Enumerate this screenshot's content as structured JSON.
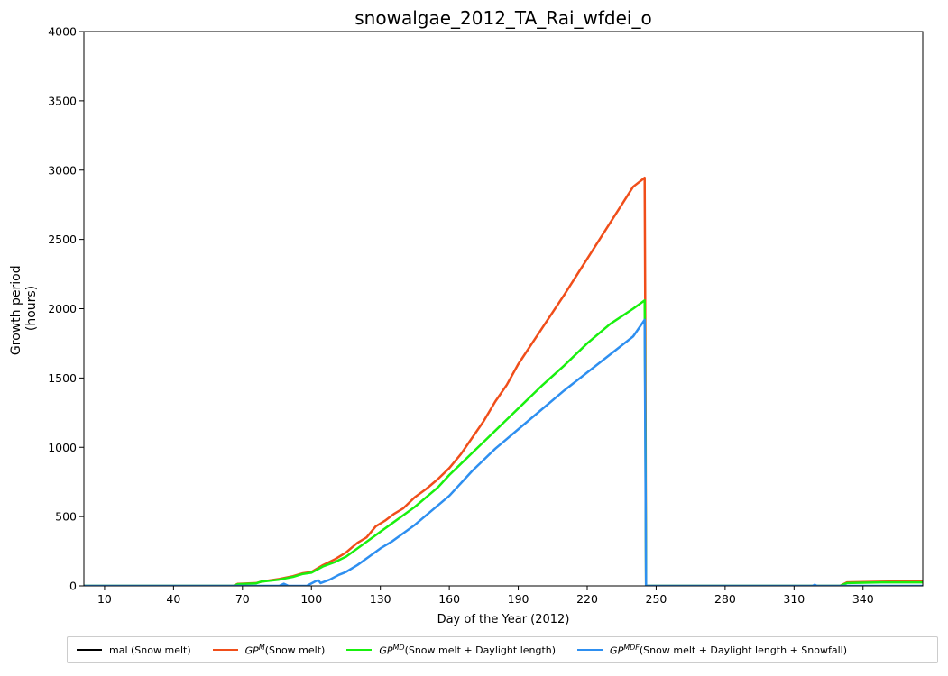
{
  "chart_data": {
    "type": "line",
    "title": "snowalgae_2012_TA_Rai_wfdei_o",
    "xlabel": "Day of the Year (2012)",
    "ylabel_line1": "Growth period",
    "ylabel_line2": "(hours)",
    "xlim": [
      1,
      366
    ],
    "ylim": [
      0,
      4000
    ],
    "xticks": [
      10,
      40,
      70,
      100,
      130,
      160,
      190,
      220,
      250,
      280,
      310,
      340
    ],
    "yticks": [
      0,
      500,
      1000,
      1500,
      2000,
      2500,
      3000,
      3500,
      4000
    ],
    "grid": false,
    "legend_position": "bottom-outside",
    "series": [
      {
        "name": "mal (Snow melt)",
        "legend_prefix": "",
        "legend_sup": "",
        "legend_text": "mal (Snow melt)",
        "color": "#000000",
        "points": []
      },
      {
        "name": "GP^M (Snow melt)",
        "legend_prefix": "GP",
        "legend_sup": "M",
        "legend_text": " (Snow melt)",
        "color": "#f04e1a",
        "points": [
          [
            1,
            0
          ],
          [
            66,
            0
          ],
          [
            68,
            15
          ],
          [
            76,
            20
          ],
          [
            78,
            30
          ],
          [
            86,
            50
          ],
          [
            92,
            70
          ],
          [
            96,
            90
          ],
          [
            100,
            100
          ],
          [
            105,
            150
          ],
          [
            110,
            190
          ],
          [
            115,
            240
          ],
          [
            120,
            310
          ],
          [
            124,
            350
          ],
          [
            128,
            430
          ],
          [
            132,
            470
          ],
          [
            136,
            520
          ],
          [
            140,
            560
          ],
          [
            145,
            640
          ],
          [
            150,
            700
          ],
          [
            155,
            770
          ],
          [
            160,
            850
          ],
          [
            165,
            950
          ],
          [
            170,
            1070
          ],
          [
            175,
            1190
          ],
          [
            180,
            1330
          ],
          [
            185,
            1450
          ],
          [
            190,
            1600
          ],
          [
            200,
            1850
          ],
          [
            210,
            2100
          ],
          [
            220,
            2360
          ],
          [
            230,
            2620
          ],
          [
            240,
            2880
          ],
          [
            245,
            2945
          ],
          [
            245.3,
            1800
          ],
          [
            245.6,
            0
          ],
          [
            330,
            0
          ],
          [
            333,
            25
          ],
          [
            348,
            30
          ],
          [
            366,
            35
          ]
        ]
      },
      {
        "name": "GP^MD (Snow melt + Daylight length)",
        "legend_prefix": "GP",
        "legend_sup": "MD",
        "legend_text": " (Snow melt + Daylight length)",
        "color": "#19f00e",
        "points": [
          [
            1,
            0
          ],
          [
            66,
            0
          ],
          [
            68,
            12
          ],
          [
            76,
            18
          ],
          [
            78,
            30
          ],
          [
            86,
            45
          ],
          [
            92,
            65
          ],
          [
            96,
            85
          ],
          [
            100,
            95
          ],
          [
            105,
            140
          ],
          [
            110,
            170
          ],
          [
            115,
            210
          ],
          [
            120,
            270
          ],
          [
            125,
            330
          ],
          [
            130,
            390
          ],
          [
            135,
            450
          ],
          [
            140,
            510
          ],
          [
            145,
            570
          ],
          [
            150,
            640
          ],
          [
            155,
            710
          ],
          [
            160,
            800
          ],
          [
            165,
            880
          ],
          [
            170,
            960
          ],
          [
            175,
            1040
          ],
          [
            180,
            1120
          ],
          [
            185,
            1200
          ],
          [
            190,
            1280
          ],
          [
            200,
            1440
          ],
          [
            210,
            1590
          ],
          [
            220,
            1750
          ],
          [
            230,
            1890
          ],
          [
            240,
            2000
          ],
          [
            245,
            2060
          ],
          [
            245.3,
            1200
          ],
          [
            245.6,
            0
          ],
          [
            330,
            0
          ],
          [
            333,
            20
          ],
          [
            348,
            25
          ],
          [
            366,
            25
          ]
        ]
      },
      {
        "name": "GP^MDF (Snow melt + Daylight length + Snowfall)",
        "legend_prefix": "GP",
        "legend_sup": "MDF",
        "legend_text": " (Snow melt + Daylight length + Snowfall)",
        "color": "#2e8ff0",
        "points": [
          [
            1,
            0
          ],
          [
            86,
            0
          ],
          [
            88,
            15
          ],
          [
            90,
            0
          ],
          [
            98,
            0
          ],
          [
            102,
            35
          ],
          [
            103,
            40
          ],
          [
            104,
            20
          ],
          [
            108,
            45
          ],
          [
            112,
            80
          ],
          [
            115,
            100
          ],
          [
            120,
            150
          ],
          [
            125,
            210
          ],
          [
            130,
            270
          ],
          [
            135,
            320
          ],
          [
            140,
            380
          ],
          [
            145,
            440
          ],
          [
            150,
            510
          ],
          [
            155,
            580
          ],
          [
            160,
            650
          ],
          [
            165,
            740
          ],
          [
            170,
            830
          ],
          [
            175,
            910
          ],
          [
            180,
            990
          ],
          [
            185,
            1060
          ],
          [
            190,
            1130
          ],
          [
            200,
            1270
          ],
          [
            210,
            1410
          ],
          [
            220,
            1540
          ],
          [
            230,
            1670
          ],
          [
            240,
            1800
          ],
          [
            245,
            1920
          ],
          [
            245.3,
            1000
          ],
          [
            245.6,
            0
          ],
          [
            318,
            0
          ],
          [
            319,
            8
          ],
          [
            320,
            0
          ],
          [
            366,
            0
          ]
        ]
      }
    ]
  }
}
